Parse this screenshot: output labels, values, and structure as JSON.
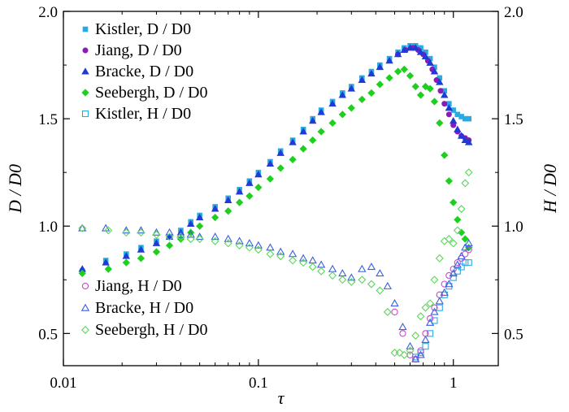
{
  "chart_data": {
    "type": "scatter",
    "x_scale": "log",
    "xlim": [
      0.01,
      1.7
    ],
    "ylim": [
      0.35,
      2.0
    ],
    "x_ticks": [
      {
        "value": 0.01,
        "label": "0.01"
      },
      {
        "value": 0.1,
        "label": "0.1"
      },
      {
        "value": 1,
        "label": "1"
      }
    ],
    "y_ticks": [
      {
        "value": 0.5,
        "label": "0.5"
      },
      {
        "value": 1.0,
        "label": "1.0"
      },
      {
        "value": 1.5,
        "label": "1.5"
      },
      {
        "value": 2.0,
        "label": "2.0"
      }
    ],
    "xlabel": "τ",
    "ylabel_left": "D / D0",
    "ylabel_right": "H / D0",
    "legend_upper": [
      {
        "series": "Kistler_D",
        "text": "Kistler, D / D0"
      },
      {
        "series": "Jiang_D",
        "text": "Jiang, D / D0"
      },
      {
        "series": "Bracke_D",
        "text": "Bracke, D / D0"
      },
      {
        "series": "Seebergh_D",
        "text": "Seebergh, D / D0"
      },
      {
        "series": "Kistler_H",
        "text": "Kistler, H / D0"
      }
    ],
    "legend_lower": [
      {
        "series": "Jiang_H",
        "text": "Jiang, H / D0"
      },
      {
        "series": "Bracke_H",
        "text": "Bracke, H / D0"
      },
      {
        "series": "Seebergh_H",
        "text": "Seebergh, H / D0"
      }
    ],
    "series": [
      {
        "id": "Kistler_D",
        "name": "Kistler, D / D0",
        "marker": "square",
        "filled": true,
        "color": "#29abe2",
        "points": [
          [
            0.0125,
            0.79
          ],
          [
            0.0165,
            0.84
          ],
          [
            0.021,
            0.87
          ],
          [
            0.025,
            0.9
          ],
          [
            0.03,
            0.93
          ],
          [
            0.035,
            0.95
          ],
          [
            0.04,
            0.98
          ],
          [
            0.045,
            1.02
          ],
          [
            0.05,
            1.05
          ],
          [
            0.06,
            1.09
          ],
          [
            0.07,
            1.13
          ],
          [
            0.08,
            1.17
          ],
          [
            0.09,
            1.21
          ],
          [
            0.1,
            1.25
          ],
          [
            0.115,
            1.3
          ],
          [
            0.13,
            1.35
          ],
          [
            0.15,
            1.4
          ],
          [
            0.17,
            1.45
          ],
          [
            0.19,
            1.5
          ],
          [
            0.21,
            1.54
          ],
          [
            0.24,
            1.58
          ],
          [
            0.27,
            1.62
          ],
          [
            0.3,
            1.65
          ],
          [
            0.34,
            1.69
          ],
          [
            0.38,
            1.72
          ],
          [
            0.42,
            1.75
          ],
          [
            0.47,
            1.78
          ],
          [
            0.52,
            1.81
          ],
          [
            0.56,
            1.83
          ],
          [
            0.6,
            1.84
          ],
          [
            0.64,
            1.84
          ],
          [
            0.68,
            1.83
          ],
          [
            0.72,
            1.81
          ],
          [
            0.76,
            1.78
          ],
          [
            0.8,
            1.74
          ],
          [
            0.85,
            1.69
          ],
          [
            0.9,
            1.63
          ],
          [
            0.95,
            1.57
          ],
          [
            1.0,
            1.54
          ],
          [
            1.05,
            1.52
          ],
          [
            1.1,
            1.51
          ],
          [
            1.15,
            1.5
          ],
          [
            1.2,
            1.5
          ]
        ]
      },
      {
        "id": "Jiang_D",
        "name": "Jiang, D / D0",
        "marker": "circle",
        "filled": true,
        "color": "#8b1ab8",
        "points": [
          [
            0.52,
            1.8
          ],
          [
            0.57,
            1.82
          ],
          [
            0.62,
            1.83
          ],
          [
            0.66,
            1.82
          ],
          [
            0.7,
            1.8
          ],
          [
            0.74,
            1.77
          ],
          [
            0.78,
            1.73
          ],
          [
            0.82,
            1.68
          ],
          [
            0.86,
            1.63
          ],
          [
            0.9,
            1.57
          ],
          [
            0.95,
            1.52
          ],
          [
            1.0,
            1.47
          ],
          [
            1.05,
            1.44
          ],
          [
            1.1,
            1.42
          ],
          [
            1.15,
            1.41
          ],
          [
            1.2,
            1.4
          ]
        ]
      },
      {
        "id": "Bracke_D",
        "name": "Bracke, D / D0",
        "marker": "triangle",
        "filled": true,
        "color": "#1f3ad6",
        "points": [
          [
            0.0125,
            0.8
          ],
          [
            0.0165,
            0.83
          ],
          [
            0.021,
            0.86
          ],
          [
            0.025,
            0.89
          ],
          [
            0.03,
            0.92
          ],
          [
            0.035,
            0.95
          ],
          [
            0.04,
            0.97
          ],
          [
            0.045,
            1.01
          ],
          [
            0.05,
            1.04
          ],
          [
            0.06,
            1.08
          ],
          [
            0.07,
            1.12
          ],
          [
            0.08,
            1.16
          ],
          [
            0.09,
            1.2
          ],
          [
            0.1,
            1.24
          ],
          [
            0.115,
            1.29
          ],
          [
            0.13,
            1.34
          ],
          [
            0.15,
            1.39
          ],
          [
            0.17,
            1.44
          ],
          [
            0.19,
            1.49
          ],
          [
            0.21,
            1.53
          ],
          [
            0.24,
            1.57
          ],
          [
            0.27,
            1.61
          ],
          [
            0.3,
            1.64
          ],
          [
            0.34,
            1.68
          ],
          [
            0.38,
            1.71
          ],
          [
            0.42,
            1.74
          ],
          [
            0.47,
            1.77
          ],
          [
            0.52,
            1.8
          ],
          [
            0.56,
            1.82
          ],
          [
            0.6,
            1.83
          ],
          [
            0.64,
            1.83
          ],
          [
            0.68,
            1.81
          ],
          [
            0.72,
            1.79
          ],
          [
            0.76,
            1.76
          ],
          [
            0.8,
            1.72
          ],
          [
            0.85,
            1.67
          ],
          [
            0.9,
            1.61
          ],
          [
            0.95,
            1.55
          ],
          [
            1.0,
            1.49
          ],
          [
            1.05,
            1.45
          ],
          [
            1.1,
            1.42
          ],
          [
            1.15,
            1.4
          ],
          [
            1.2,
            1.39
          ]
        ]
      },
      {
        "id": "Seebergh_D",
        "name": "Seebergh, D / D0",
        "marker": "diamond",
        "filled": true,
        "color": "#1ed01e",
        "points": [
          [
            0.0125,
            0.78
          ],
          [
            0.017,
            0.8
          ],
          [
            0.021,
            0.83
          ],
          [
            0.025,
            0.85
          ],
          [
            0.03,
            0.88
          ],
          [
            0.035,
            0.91
          ],
          [
            0.04,
            0.94
          ],
          [
            0.045,
            0.97
          ],
          [
            0.05,
            1.0
          ],
          [
            0.06,
            1.04
          ],
          [
            0.07,
            1.07
          ],
          [
            0.08,
            1.11
          ],
          [
            0.09,
            1.14
          ],
          [
            0.1,
            1.18
          ],
          [
            0.115,
            1.22
          ],
          [
            0.13,
            1.27
          ],
          [
            0.15,
            1.31
          ],
          [
            0.17,
            1.36
          ],
          [
            0.19,
            1.4
          ],
          [
            0.21,
            1.44
          ],
          [
            0.24,
            1.48
          ],
          [
            0.27,
            1.52
          ],
          [
            0.3,
            1.55
          ],
          [
            0.34,
            1.59
          ],
          [
            0.38,
            1.62
          ],
          [
            0.42,
            1.66
          ],
          [
            0.47,
            1.69
          ],
          [
            0.52,
            1.72
          ],
          [
            0.56,
            1.73
          ],
          [
            0.6,
            1.7
          ],
          [
            0.64,
            1.65
          ],
          [
            0.68,
            1.61
          ],
          [
            0.72,
            1.65
          ],
          [
            0.76,
            1.64
          ],
          [
            0.8,
            1.58
          ],
          [
            0.85,
            1.48
          ],
          [
            0.9,
            1.33
          ],
          [
            0.95,
            1.21
          ],
          [
            1.0,
            1.11
          ],
          [
            1.05,
            1.03
          ],
          [
            1.1,
            0.97
          ],
          [
            1.15,
            0.94
          ],
          [
            1.2,
            0.9
          ]
        ]
      },
      {
        "id": "Kistler_H",
        "name": "Kistler, H / D0",
        "marker": "square",
        "filled": false,
        "color": "#29abe2",
        "points": [
          [
            0.64,
            0.39
          ],
          [
            0.68,
            0.41
          ],
          [
            0.72,
            0.44
          ],
          [
            0.76,
            0.5
          ],
          [
            0.8,
            0.56
          ],
          [
            0.85,
            0.62
          ],
          [
            0.9,
            0.68
          ],
          [
            0.95,
            0.72
          ],
          [
            1.0,
            0.76
          ],
          [
            1.05,
            0.79
          ],
          [
            1.1,
            0.81
          ],
          [
            1.15,
            0.83
          ],
          [
            1.2,
            0.83
          ]
        ]
      },
      {
        "id": "Jiang_H",
        "name": "Jiang, H / D0",
        "marker": "circle",
        "filled": false,
        "color": "#c84cc8",
        "points": [
          [
            0.5,
            0.6
          ],
          [
            0.55,
            0.5
          ],
          [
            0.6,
            0.4
          ],
          [
            0.64,
            0.38
          ],
          [
            0.68,
            0.42
          ],
          [
            0.72,
            0.5
          ],
          [
            0.76,
            0.57
          ],
          [
            0.8,
            0.62
          ],
          [
            0.85,
            0.68
          ],
          [
            0.9,
            0.73
          ],
          [
            0.95,
            0.77
          ],
          [
            1.0,
            0.8
          ],
          [
            1.05,
            0.83
          ],
          [
            1.1,
            0.85
          ],
          [
            1.15,
            0.87
          ],
          [
            1.2,
            0.89
          ]
        ]
      },
      {
        "id": "Bracke_H",
        "name": "Bracke, H / D0",
        "marker": "triangle",
        "filled": false,
        "color": "#3a5fe0",
        "points": [
          [
            0.0125,
            0.99
          ],
          [
            0.0165,
            0.99
          ],
          [
            0.021,
            0.98
          ],
          [
            0.025,
            0.98
          ],
          [
            0.03,
            0.97
          ],
          [
            0.035,
            0.97
          ],
          [
            0.04,
            0.96
          ],
          [
            0.045,
            0.96
          ],
          [
            0.05,
            0.95
          ],
          [
            0.06,
            0.95
          ],
          [
            0.07,
            0.94
          ],
          [
            0.08,
            0.93
          ],
          [
            0.09,
            0.92
          ],
          [
            0.1,
            0.91
          ],
          [
            0.115,
            0.9
          ],
          [
            0.13,
            0.88
          ],
          [
            0.15,
            0.87
          ],
          [
            0.17,
            0.85
          ],
          [
            0.19,
            0.84
          ],
          [
            0.21,
            0.82
          ],
          [
            0.24,
            0.8
          ],
          [
            0.27,
            0.78
          ],
          [
            0.3,
            0.76
          ],
          [
            0.34,
            0.8
          ],
          [
            0.38,
            0.81
          ],
          [
            0.42,
            0.78
          ],
          [
            0.46,
            0.72
          ],
          [
            0.5,
            0.64
          ],
          [
            0.55,
            0.53
          ],
          [
            0.6,
            0.44
          ],
          [
            0.64,
            0.38
          ],
          [
            0.68,
            0.4
          ],
          [
            0.72,
            0.47
          ],
          [
            0.76,
            0.55
          ],
          [
            0.8,
            0.6
          ],
          [
            0.85,
            0.65
          ],
          [
            0.9,
            0.69
          ],
          [
            0.95,
            0.73
          ],
          [
            1.0,
            0.78
          ],
          [
            1.05,
            0.82
          ],
          [
            1.1,
            0.86
          ],
          [
            1.15,
            0.9
          ],
          [
            1.2,
            0.92
          ]
        ]
      },
      {
        "id": "Seebergh_H",
        "name": "Seebergh, H / D0",
        "marker": "diamond",
        "filled": false,
        "color": "#5cd65c",
        "points": [
          [
            0.0125,
            0.99
          ],
          [
            0.017,
            0.98
          ],
          [
            0.021,
            0.97
          ],
          [
            0.025,
            0.97
          ],
          [
            0.03,
            0.96
          ],
          [
            0.035,
            0.95
          ],
          [
            0.04,
            0.95
          ],
          [
            0.045,
            0.94
          ],
          [
            0.05,
            0.94
          ],
          [
            0.06,
            0.93
          ],
          [
            0.07,
            0.92
          ],
          [
            0.08,
            0.91
          ],
          [
            0.09,
            0.9
          ],
          [
            0.1,
            0.89
          ],
          [
            0.115,
            0.87
          ],
          [
            0.13,
            0.86
          ],
          [
            0.15,
            0.84
          ],
          [
            0.17,
            0.83
          ],
          [
            0.19,
            0.81
          ],
          [
            0.21,
            0.79
          ],
          [
            0.24,
            0.77
          ],
          [
            0.27,
            0.75
          ],
          [
            0.3,
            0.74
          ],
          [
            0.34,
            0.75
          ],
          [
            0.38,
            0.73
          ],
          [
            0.42,
            0.7
          ],
          [
            0.46,
            0.6
          ],
          [
            0.5,
            0.41
          ],
          [
            0.53,
            0.41
          ],
          [
            0.56,
            0.4
          ],
          [
            0.6,
            0.42
          ],
          [
            0.64,
            0.49
          ],
          [
            0.68,
            0.58
          ],
          [
            0.72,
            0.62
          ],
          [
            0.76,
            0.64
          ],
          [
            0.8,
            0.75
          ],
          [
            0.85,
            0.85
          ],
          [
            0.9,
            0.93
          ],
          [
            0.95,
            0.94
          ],
          [
            1.0,
            0.92
          ],
          [
            1.05,
            0.98
          ],
          [
            1.1,
            1.08
          ],
          [
            1.15,
            1.2
          ],
          [
            1.2,
            1.25
          ]
        ]
      }
    ]
  }
}
